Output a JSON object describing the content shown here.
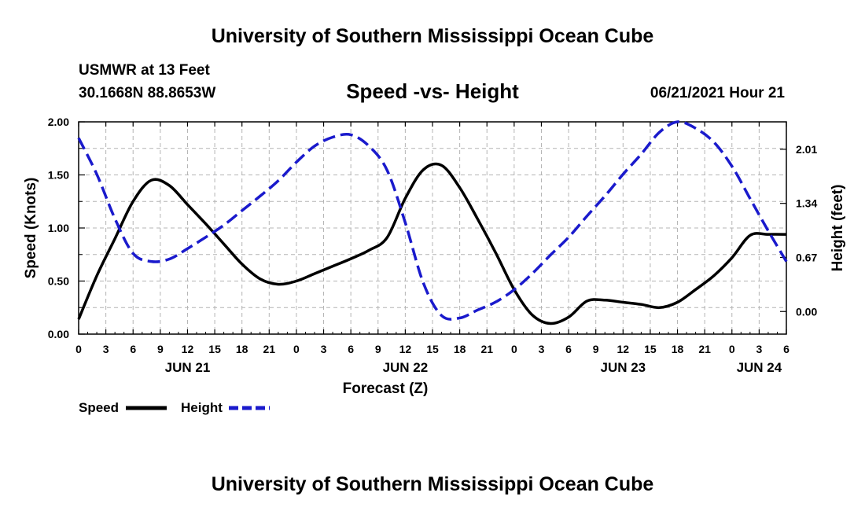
{
  "header": {
    "title": "University of Southern Mississippi Ocean Cube",
    "station": "USMWR at 13 Feet",
    "coords": "30.1668N  88.8653W",
    "chart_title": "Speed -vs- Height",
    "timestamp": "06/21/2021 Hour 21"
  },
  "footer": {
    "title": "University of Southern Mississippi Ocean Cube"
  },
  "colors": {
    "speed": "#000000",
    "height": "#1a1acc",
    "grid": "#b4b4b4"
  },
  "chart_data": {
    "type": "line",
    "title": "Speed -vs- Height",
    "xlabel": "Forecast (Z)",
    "ylabel": "Speed (Knots)",
    "y2label": "Height (feet)",
    "x_hours_range": [
      0,
      78
    ],
    "x_tick_labels": [
      "0",
      "3",
      "6",
      "9",
      "12",
      "15",
      "18",
      "21",
      "0",
      "3",
      "6",
      "9",
      "12",
      "15",
      "18",
      "21",
      "0",
      "3",
      "6",
      "9",
      "12",
      "15",
      "18",
      "21",
      "0",
      "3",
      "6"
    ],
    "day_labels": [
      {
        "label": "JUN 21",
        "hour": 12
      },
      {
        "label": "JUN 22",
        "hour": 36
      },
      {
        "label": "JUN 23",
        "hour": 60
      },
      {
        "label": "JUN 24",
        "hour": 75
      }
    ],
    "y_range": [
      0,
      2
    ],
    "y_ticks": [
      {
        "value": 0,
        "label": "0.00"
      },
      {
        "value": 0.5,
        "label": "0.50"
      },
      {
        "value": 1.0,
        "label": "1.00"
      },
      {
        "value": 1.5,
        "label": "1.50"
      },
      {
        "value": 2.0,
        "label": "2.00"
      }
    ],
    "y2_range": [
      -0.28,
      2.35
    ],
    "y2_ticks": [
      {
        "value": 0.0,
        "label": "0.00"
      },
      {
        "value": 0.67,
        "label": "0.67"
      },
      {
        "value": 1.34,
        "label": "1.34"
      },
      {
        "value": 2.01,
        "label": "2.01"
      }
    ],
    "grid": true,
    "series": [
      {
        "name": "Speed",
        "axis": "left",
        "style": "solid",
        "x": [
          0,
          2,
          4,
          6,
          8,
          10,
          12,
          14,
          16,
          18,
          20,
          22,
          24,
          26,
          28,
          30,
          32,
          34,
          36,
          38,
          40,
          42,
          44,
          46,
          48,
          50,
          52,
          54,
          56,
          58,
          60,
          62,
          64,
          66,
          68,
          70,
          72,
          74,
          76,
          78
        ],
        "y": [
          0.14,
          0.55,
          0.9,
          1.25,
          1.45,
          1.4,
          1.22,
          1.04,
          0.85,
          0.66,
          0.52,
          0.47,
          0.5,
          0.57,
          0.64,
          0.71,
          0.79,
          0.91,
          1.28,
          1.55,
          1.59,
          1.38,
          1.08,
          0.76,
          0.42,
          0.18,
          0.1,
          0.16,
          0.31,
          0.32,
          0.3,
          0.28,
          0.25,
          0.3,
          0.42,
          0.55,
          0.72,
          0.93,
          0.94,
          0.94
        ]
      },
      {
        "name": "Height",
        "axis": "right",
        "style": "dashed",
        "x": [
          0,
          2,
          4,
          6,
          8,
          10,
          12,
          14,
          16,
          18,
          20,
          22,
          24,
          26,
          28,
          30,
          32,
          34,
          36,
          38,
          40,
          42,
          44,
          46,
          48,
          50,
          52,
          54,
          56,
          58,
          60,
          62,
          64,
          66,
          68,
          70,
          72,
          74,
          76,
          78
        ],
        "y": [
          2.15,
          1.7,
          1.15,
          0.72,
          0.62,
          0.65,
          0.78,
          0.92,
          1.07,
          1.25,
          1.43,
          1.62,
          1.85,
          2.05,
          2.16,
          2.19,
          2.05,
          1.75,
          1.1,
          0.35,
          -0.05,
          -0.08,
          0.02,
          0.12,
          0.27,
          0.47,
          0.7,
          0.92,
          1.18,
          1.43,
          1.7,
          1.95,
          2.22,
          2.35,
          2.27,
          2.1,
          1.8,
          1.4,
          1.0,
          0.62
        ]
      }
    ],
    "legend": [
      {
        "label": "Speed",
        "series": "Speed"
      },
      {
        "label": "Height",
        "series": "Height"
      }
    ]
  }
}
